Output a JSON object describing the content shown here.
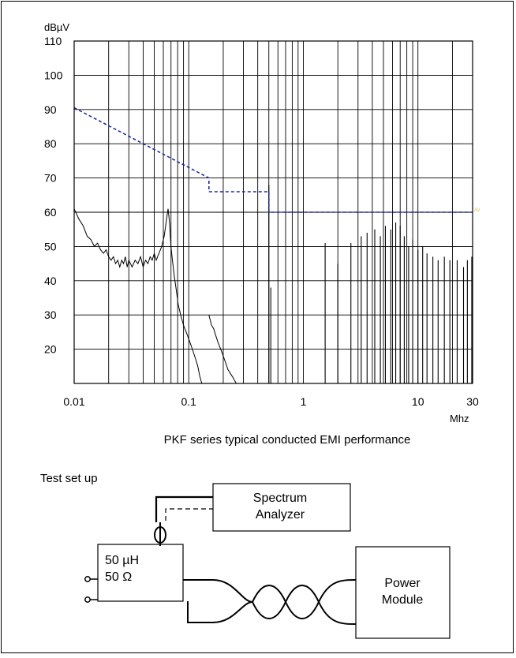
{
  "chart_data": {
    "type": "line",
    "y_unit": "dBµV",
    "x_unit": "Mhz",
    "xscale": "log",
    "xlim": [
      0.01,
      30
    ],
    "ylim": [
      10,
      110
    ],
    "grid": true,
    "y_ticks": [
      "110",
      "100",
      "90",
      "80",
      "70",
      "60",
      "50",
      "40",
      "30",
      "20"
    ],
    "x_ticks": [
      {
        "v": 0.01,
        "label": "0.01"
      },
      {
        "v": 0.1,
        "label": "0.1"
      },
      {
        "v": 1,
        "label": "1"
      },
      {
        "v": 10,
        "label": "10"
      },
      {
        "v": 30,
        "label": "30"
      }
    ],
    "limit_label": "AV",
    "limit_line": [
      [
        0.01,
        90.5
      ],
      [
        0.15,
        70
      ],
      [
        0.15,
        66
      ],
      [
        0.5,
        66
      ],
      [
        0.5,
        60
      ],
      [
        30,
        60
      ]
    ],
    "series": [
      {
        "points": [
          [
            0.01,
            61
          ],
          [
            0.011,
            58
          ],
          [
            0.012,
            56
          ],
          [
            0.013,
            53
          ],
          [
            0.014,
            52
          ],
          [
            0.015,
            50
          ],
          [
            0.016,
            51
          ],
          [
            0.017,
            49
          ],
          [
            0.018,
            48
          ],
          [
            0.019,
            49
          ],
          [
            0.02,
            47
          ],
          [
            0.021,
            46
          ],
          [
            0.022,
            47
          ],
          [
            0.023,
            45
          ],
          [
            0.024,
            46
          ],
          [
            0.025,
            44
          ],
          [
            0.026,
            46
          ],
          [
            0.027,
            45
          ],
          [
            0.028,
            47
          ],
          [
            0.029,
            44
          ],
          [
            0.03,
            46
          ],
          [
            0.032,
            44
          ],
          [
            0.034,
            46
          ],
          [
            0.036,
            45
          ],
          [
            0.038,
            47
          ],
          [
            0.04,
            44
          ],
          [
            0.042,
            46
          ],
          [
            0.044,
            45
          ],
          [
            0.046,
            47
          ],
          [
            0.048,
            46
          ],
          [
            0.05,
            48
          ],
          [
            0.052,
            46
          ],
          [
            0.055,
            48
          ],
          [
            0.058,
            50
          ],
          [
            0.061,
            53
          ],
          [
            0.064,
            58
          ],
          [
            0.066,
            61
          ],
          [
            0.068,
            57
          ],
          [
            0.07,
            50
          ],
          [
            0.072,
            46
          ],
          [
            0.075,
            41
          ],
          [
            0.078,
            37
          ],
          [
            0.081,
            33
          ],
          [
            0.085,
            30
          ],
          [
            0.09,
            27
          ],
          [
            0.095,
            25
          ],
          [
            0.1,
            23
          ],
          [
            0.105,
            21
          ],
          [
            0.11,
            19
          ],
          [
            0.115,
            17
          ],
          [
            0.12,
            15
          ],
          [
            0.125,
            12
          ],
          [
            0.13,
            10
          ]
        ]
      },
      {
        "points": [
          [
            0.15,
            30
          ],
          [
            0.158,
            27
          ],
          [
            0.165,
            26
          ],
          [
            0.172,
            24
          ],
          [
            0.18,
            22
          ],
          [
            0.19,
            20
          ],
          [
            0.2,
            18
          ],
          [
            0.21,
            16
          ],
          [
            0.22,
            14
          ],
          [
            0.24,
            12
          ],
          [
            0.26,
            10
          ]
        ]
      },
      {
        "spikes": [
          [
            0.5,
            68
          ],
          [
            0.52,
            38
          ],
          [
            0.6,
            10
          ],
          [
            1.55,
            51
          ],
          [
            2.0,
            45
          ],
          [
            2.6,
            51
          ],
          [
            3.2,
            53
          ],
          [
            3.6,
            54
          ],
          [
            4.2,
            55
          ],
          [
            4.7,
            53
          ],
          [
            5.2,
            56
          ],
          [
            5.8,
            55
          ],
          [
            6.4,
            57
          ],
          [
            7.0,
            56
          ],
          [
            7.6,
            53
          ],
          [
            8.3,
            50
          ],
          [
            9.0,
            52
          ],
          [
            10.0,
            49
          ],
          [
            11.0,
            50
          ],
          [
            12.0,
            48
          ],
          [
            13.5,
            47
          ],
          [
            15.0,
            46
          ],
          [
            17.0,
            47
          ],
          [
            19.0,
            46
          ],
          [
            22.0,
            46
          ],
          [
            25.0,
            44
          ],
          [
            27.0,
            46
          ],
          [
            29.5,
            47
          ]
        ]
      }
    ],
    "caption": "PKF series typical conducted EMI performance"
  },
  "test_setup": {
    "title": "Test set up",
    "analyzer_line1": "Spectrum",
    "analyzer_line2": "Analyzer",
    "lisn_line1": "50 µH",
    "lisn_line2": "50 Ω",
    "module_line1": "Power",
    "module_line2": "Module"
  },
  "colors": {
    "limit": "#1f2aa0",
    "trace": "#000000",
    "av_label": "#d8c24a"
  }
}
